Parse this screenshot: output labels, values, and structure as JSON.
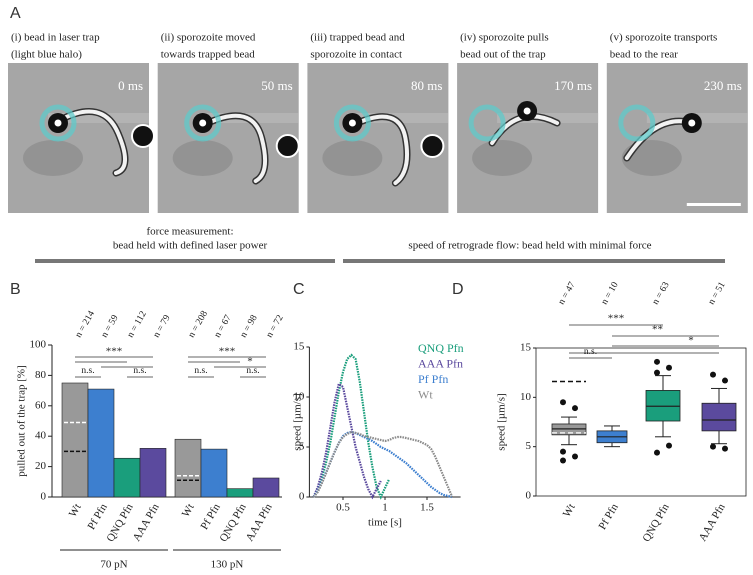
{
  "figure": {
    "panel_labels": [
      "A",
      "B",
      "C",
      "D"
    ],
    "panel_a": {
      "frames": [
        {
          "caption": [
            "(i) bead in laser trap",
            "(light blue halo)"
          ],
          "time": "0 ms"
        },
        {
          "caption": [
            "(ii) sporozoite moved",
            "towards trapped bead"
          ],
          "time": "50 ms"
        },
        {
          "caption": [
            "(iii) trapped bead and",
            "sporozoite in contact"
          ],
          "time": "80 ms"
        },
        {
          "caption": [
            "(iv) sporozoite pulls",
            "bead out of the trap"
          ],
          "time": "170 ms"
        },
        {
          "caption": [
            "(v) sporozoite transports",
            "bead to the rear"
          ],
          "time": "230 ms"
        }
      ],
      "notes": [
        [
          "force measurement:",
          "bead held with defined laser power"
        ],
        [
          "speed of retrograde flow: bead held with minimal force"
        ]
      ]
    }
  },
  "chart_data": [
    {
      "type": "bar",
      "ylabel": "pulled out of the trap [%]",
      "categories": [
        "Wt",
        "Pf Pfn",
        "QNQ Pfn",
        "AAA Pfn"
      ],
      "colors": [
        "#999999",
        "#3d7fcf",
        "#1a9e7c",
        "#5b4a9e"
      ],
      "ylim": [
        0,
        100
      ],
      "yticks": [
        0,
        20,
        40,
        60,
        80,
        100
      ],
      "groups": [
        {
          "name": "70 pN",
          "values": [
            75,
            71,
            25.5,
            32
          ],
          "n_labels": [
            "n = 214",
            "n = 59",
            "n = 112",
            "n = 79"
          ],
          "dashed_black": 30,
          "dashed_white": 49,
          "significance": [
            "***",
            "n.s.",
            "n.s."
          ]
        },
        {
          "name": "130 pN",
          "values": [
            38,
            31.5,
            5.5,
            12.5
          ],
          "n_labels": [
            "n = 208",
            "n = 67",
            "n = 98",
            "n = 72"
          ],
          "dashed_black": 11,
          "dashed_white": 14,
          "significance": [
            "***",
            "*",
            "n.s.",
            "n.s."
          ]
        }
      ]
    },
    {
      "type": "line",
      "xlabel": "time [s]",
      "ylabel": "speed [µm/s]",
      "xlim": [
        0.1,
        1.9
      ],
      "xticks": [
        0.5,
        1,
        1.5
      ],
      "ylim": [
        0,
        15
      ],
      "yticks": [
        0,
        5,
        10,
        15
      ],
      "x": [
        0.15,
        0.2,
        0.25,
        0.3,
        0.35,
        0.4,
        0.45,
        0.5,
        0.55,
        0.6,
        0.65,
        0.7,
        0.75,
        0.8,
        0.85,
        0.9,
        0.95,
        1.0,
        1.05,
        1.1,
        1.15,
        1.2,
        1.25,
        1.3,
        1.35,
        1.4,
        1.45,
        1.5,
        1.55,
        1.6,
        1.65,
        1.7,
        1.75,
        1.8
      ],
      "series": [
        {
          "name": "QNQ Pfn",
          "color": "#1a9e7c",
          "values": [
            0,
            0.8,
            2,
            3.5,
            5.5,
            8,
            10.5,
            12.5,
            13.8,
            14.2,
            13.8,
            11.5,
            8.5,
            5.5,
            3,
            1,
            0,
            0.9,
            1.8,
            null,
            null,
            null,
            null,
            null,
            null,
            null,
            null,
            null,
            null,
            null,
            null,
            null,
            null,
            null
          ]
        },
        {
          "name": "AAA Pfn",
          "color": "#5b4a9e",
          "values": [
            0,
            1,
            2.5,
            4.5,
            7,
            9.5,
            11.3,
            11,
            9,
            7,
            5,
            3.5,
            2,
            0.8,
            0,
            0.8,
            1.6,
            null,
            null,
            null,
            null,
            null,
            null,
            null,
            null,
            null,
            null,
            null,
            null,
            null,
            null,
            null,
            null,
            null
          ]
        },
        {
          "name": "Pf Pfn",
          "color": "#3d7fcf",
          "values": [
            0,
            0.6,
            1.5,
            2.5,
            3.5,
            4.5,
            5.4,
            6.1,
            6.4,
            6.5,
            6.4,
            6.2,
            6,
            5.8,
            5.6,
            5.3,
            5,
            4.8,
            4.6,
            4.3,
            4,
            3.7,
            3.4,
            3,
            2.6,
            2.2,
            1.8,
            1.4,
            1,
            0.7,
            0.4,
            0.2,
            0.1,
            0
          ]
        },
        {
          "name": "Wt",
          "color": "#8c8c8c",
          "values": [
            0,
            0.5,
            1.4,
            2.4,
            3.5,
            4.5,
            5.4,
            6,
            6.3,
            6.5,
            6.4,
            6.3,
            6.1,
            6,
            5.9,
            5.8,
            5.7,
            5.6,
            5.7,
            5.9,
            6,
            6,
            5.9,
            5.8,
            5.7,
            5.6,
            5.4,
            5.2,
            4.8,
            4,
            3,
            2,
            1,
            0
          ]
        }
      ]
    },
    {
      "type": "box",
      "ylabel": "speed [µm/s]",
      "categories": [
        "Wt",
        "Pf Pfn",
        "QNQ Pfn",
        "AAA Pfn"
      ],
      "colors": [
        "#999999",
        "#3d7fcf",
        "#1a9e7c",
        "#5b4a9e"
      ],
      "n_labels": [
        "n = 47",
        "n = 10",
        "n = 63",
        "n = 51"
      ],
      "ylim": [
        0,
        15
      ],
      "yticks": [
        0,
        5,
        10,
        15
      ],
      "boxes": [
        {
          "whisker_low": 5.2,
          "q1": 6.2,
          "median": 6.8,
          "q3": 7.3,
          "whisker_high": 8.0,
          "outliers": [
            9.5,
            8.9,
            4.5,
            4.0,
            3.6
          ]
        },
        {
          "whisker_low": 5.0,
          "q1": 5.4,
          "median": 6.0,
          "q3": 6.6,
          "whisker_high": 7.1,
          "outliers": []
        },
        {
          "whisker_low": 6.0,
          "q1": 7.6,
          "median": 9.1,
          "q3": 10.7,
          "whisker_high": 12.2,
          "outliers": [
            13.6,
            13.0,
            12.5,
            5.1,
            4.4
          ]
        },
        {
          "whisker_low": 5.3,
          "q1": 6.6,
          "median": 7.7,
          "q3": 9.4,
          "whisker_high": 10.9,
          "outliers": [
            12.3,
            11.7,
            5.0,
            4.8
          ]
        }
      ],
      "dashed_black": 11.6,
      "dashed_white": 6.4,
      "significance": [
        "***",
        "**",
        "*",
        "n.s."
      ]
    }
  ]
}
